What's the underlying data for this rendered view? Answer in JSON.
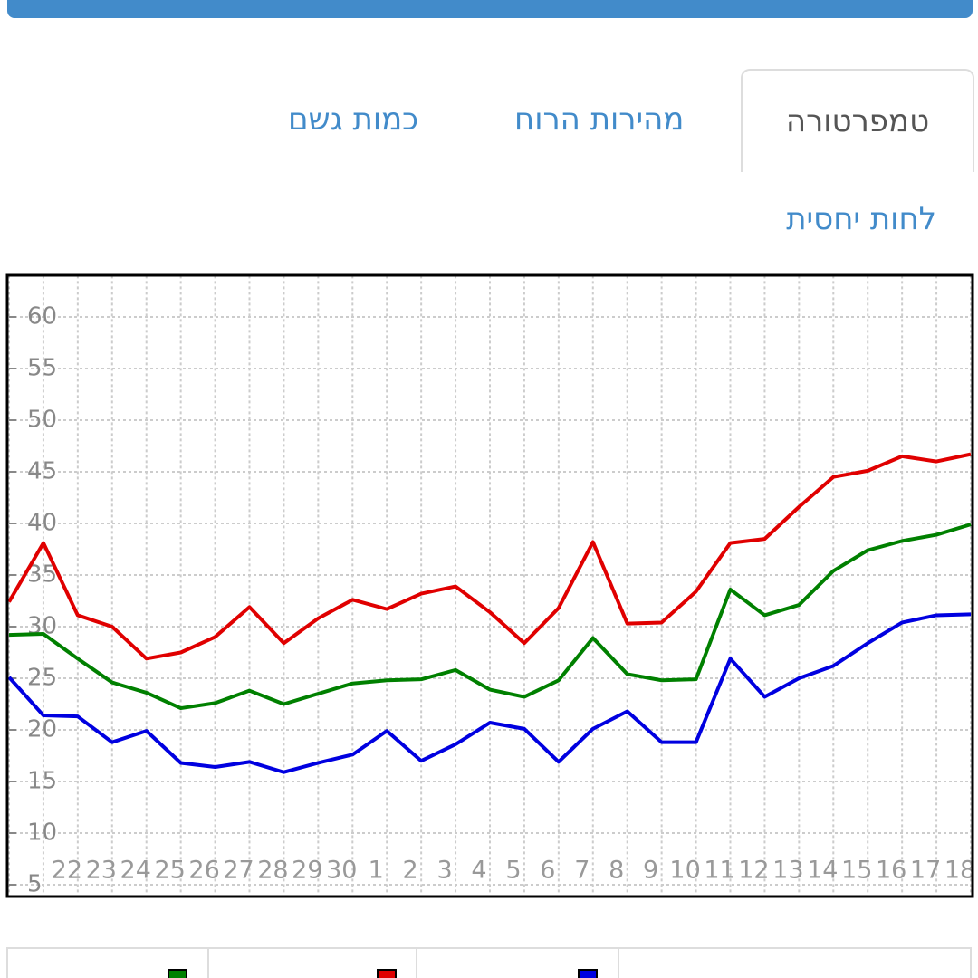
{
  "tabs": [
    "טמפרטורה",
    "מהירות הרוח",
    "כמות גשם"
  ],
  "subtab": "לחות יחסית",
  "chart_data": {
    "type": "line",
    "categories": [
      null,
      null,
      "22",
      "23",
      "24",
      "25",
      "26",
      "27",
      "28",
      "29",
      "30",
      "1",
      "2",
      "3",
      "4",
      "5",
      "6",
      "7",
      "8",
      "9",
      "10",
      "11",
      "12",
      "13",
      "14",
      "15",
      "16",
      "17",
      "18"
    ],
    "series": [
      {
        "color": "#e00000",
        "values": [
          32.4,
          38.1,
          31.1,
          30,
          26.9,
          27.5,
          29,
          31.9,
          28.4,
          30.8,
          32.6,
          31.7,
          33.2,
          33.9,
          31.4,
          28.4,
          31.8,
          38.2,
          30.3,
          30.4,
          33.4,
          38.1,
          38.5,
          41.6,
          44.5,
          45.1,
          46.5,
          46,
          46.7
        ]
      },
      {
        "color": "#008000",
        "values": [
          29.2,
          29.3,
          26.9,
          24.6,
          23.6,
          22.1,
          22.6,
          23.8,
          22.5,
          23.5,
          24.5,
          24.8,
          24.9,
          25.8,
          23.9,
          23.2,
          24.8,
          28.9,
          25.4,
          24.8,
          24.9,
          33.6,
          31.1,
          32.1,
          35.4,
          37.4,
          38.3,
          38.9,
          39.9
        ]
      },
      {
        "color": "#0000e0",
        "values": [
          25.1,
          21.4,
          21.3,
          18.8,
          19.9,
          16.8,
          16.4,
          16.9,
          15.9,
          16.8,
          17.6,
          19.9,
          17,
          18.6,
          20.7,
          20.1,
          16.9,
          20.1,
          21.8,
          18.8,
          18.8,
          26.9,
          23.2,
          25,
          26.2,
          28.4,
          30.4,
          31.1,
          31.2
        ]
      }
    ],
    "ylim": [
      4,
      64
    ],
    "yticks": [
      5,
      10,
      15,
      20,
      25,
      30,
      35,
      40,
      45,
      50,
      55,
      60
    ],
    "grid": true
  }
}
